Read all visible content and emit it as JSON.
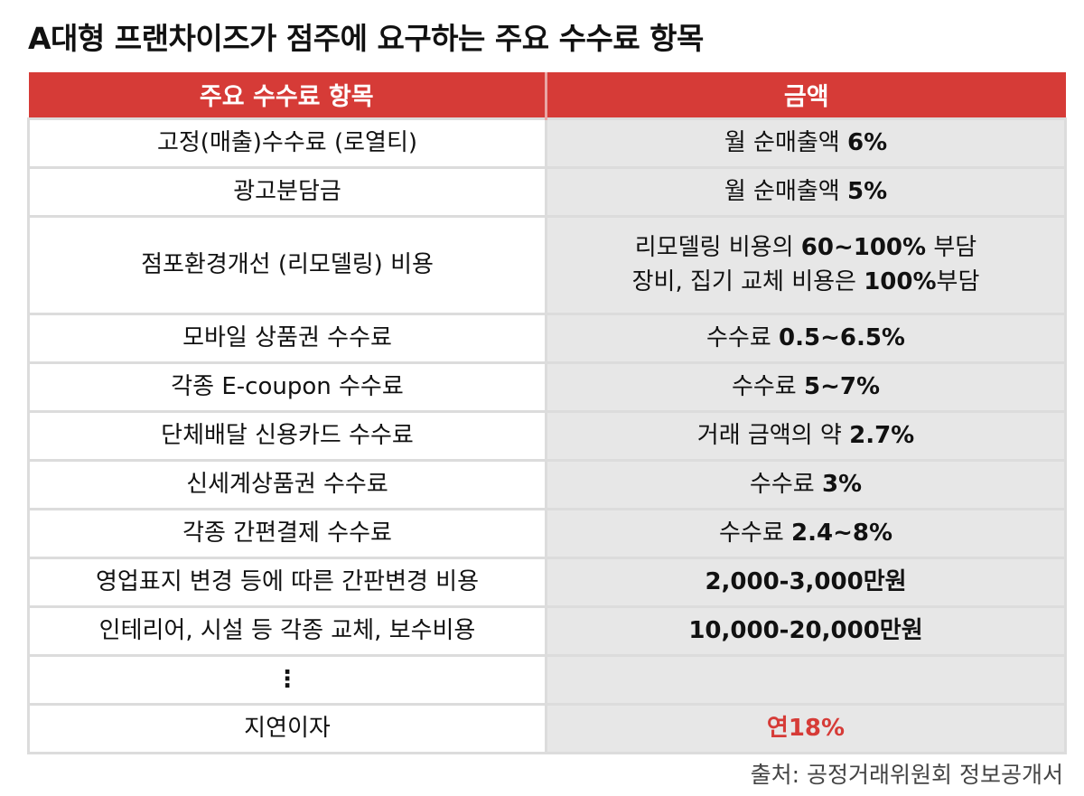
{
  "title": "A대형 프랜차이즈가 점주에 요구하는 주요 수수료 항목",
  "colors": {
    "header_bg": "#d63b37",
    "header_text": "#ffffff",
    "highlight": "#d63b37",
    "amount_col_bg": "#e7e7e7"
  },
  "table": {
    "headers": [
      "주요 수수료 항목",
      "금액"
    ],
    "rows": [
      {
        "item": "고정(매출)수수료 (로열티)",
        "amount_prefix": "월 순매출액 ",
        "amount_value": "6%"
      },
      {
        "item": "광고분담금",
        "amount_prefix": "월 순매출액 ",
        "amount_value": "5%"
      },
      {
        "item": "점포환경개선 (리모델링) 비용",
        "amount_line1_prefix": "리모델링 비용의 ",
        "amount_line1_value": "60~100%",
        "amount_line1_suffix": " 부담",
        "amount_line2_prefix": "장비, 집기 교체 비용은 ",
        "amount_line2_value": "100%",
        "amount_line2_suffix": "부담"
      },
      {
        "item": "모바일 상품권 수수료",
        "amount_prefix": "수수료 ",
        "amount_value": "0.5~6.5%"
      },
      {
        "item": "각종 E-coupon 수수료",
        "amount_prefix": "수수료 ",
        "amount_value": "5~7%"
      },
      {
        "item": "단체배달 신용카드 수수료",
        "amount_prefix": "거래 금액의 약 ",
        "amount_value": "2.7%"
      },
      {
        "item": "신세계상품권 수수료",
        "amount_prefix": "수수료 ",
        "amount_value": "3%"
      },
      {
        "item": "각종 간편결제 수수료",
        "amount_prefix": "수수료 ",
        "amount_value": "2.4~8%"
      },
      {
        "item": "영업표지 변경 등에 따른 간판변경 비용",
        "amount_prefix": "",
        "amount_value": "2,000-3,000만원"
      },
      {
        "item": "인테리어, 시설 등 각종 교체, 보수비용",
        "amount_prefix": "",
        "amount_value": "10,000-20,000만원"
      },
      {
        "item": "⋮",
        "amount_prefix": "",
        "amount_value": ""
      },
      {
        "item": "지연이자",
        "amount_prefix": "",
        "amount_value": "연18%"
      }
    ]
  },
  "source": "출처: 공정거래위원회 정보공개서"
}
